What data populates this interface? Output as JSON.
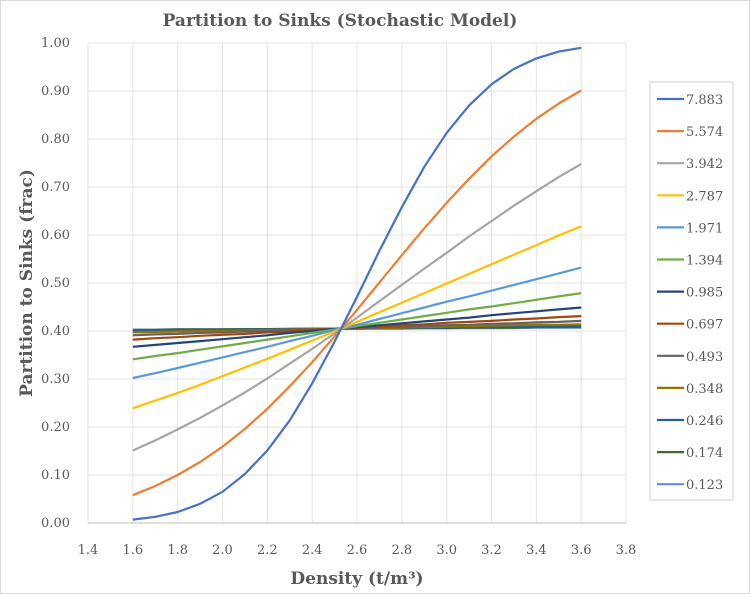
{
  "chart_data": {
    "type": "line",
    "title": "Partition to Sinks (Stochastic Model)",
    "xlabel": "Density (t/m³)",
    "ylabel": "Partition to Sinks (frac)",
    "xlim": [
      1.4,
      3.8
    ],
    "ylim": [
      0,
      1.0
    ],
    "xticks": [
      "1.4",
      "1.6",
      "1.8",
      "2.0",
      "2.2",
      "2.4",
      "2.6",
      "2.8",
      "3.0",
      "3.2",
      "3.4",
      "3.6",
      "3.8"
    ],
    "yticks": [
      "0.00",
      "0.10",
      "0.20",
      "0.30",
      "0.40",
      "0.50",
      "0.60",
      "0.70",
      "0.80",
      "0.90",
      "1.00"
    ],
    "grid": true,
    "legend_position": "right",
    "x": [
      1.6,
      1.7,
      1.8,
      1.9,
      2.0,
      2.1,
      2.2,
      2.3,
      2.4,
      2.5,
      2.6,
      2.7,
      2.8,
      2.9,
      3.0,
      3.1,
      3.2,
      3.3,
      3.4,
      3.5,
      3.6
    ],
    "series": [
      {
        "name": "7.883",
        "color": "#4472C4",
        "values": [
          0.007,
          0.013,
          0.023,
          0.04,
          0.065,
          0.102,
          0.151,
          0.214,
          0.291,
          0.378,
          0.471,
          0.567,
          0.658,
          0.742,
          0.813,
          0.87,
          0.914,
          0.946,
          0.968,
          0.982,
          0.99
        ]
      },
      {
        "name": "5.574",
        "color": "#ED7D31",
        "values": [
          0.058,
          0.077,
          0.1,
          0.127,
          0.159,
          0.196,
          0.238,
          0.285,
          0.335,
          0.389,
          0.444,
          0.501,
          0.558,
          0.614,
          0.667,
          0.717,
          0.764,
          0.805,
          0.842,
          0.874,
          0.901
        ]
      },
      {
        "name": "3.942",
        "color": "#A5A5A5",
        "values": [
          0.151,
          0.172,
          0.195,
          0.219,
          0.245,
          0.272,
          0.301,
          0.332,
          0.363,
          0.395,
          0.428,
          0.462,
          0.496,
          0.53,
          0.563,
          0.597,
          0.629,
          0.661,
          0.691,
          0.721,
          0.748
        ]
      },
      {
        "name": "2.787",
        "color": "#FFC000",
        "values": [
          0.239,
          0.255,
          0.271,
          0.288,
          0.306,
          0.324,
          0.342,
          0.361,
          0.38,
          0.399,
          0.419,
          0.439,
          0.459,
          0.479,
          0.499,
          0.519,
          0.539,
          0.559,
          0.579,
          0.599,
          0.618
        ]
      },
      {
        "name": "1.971",
        "color": "#5B9BD5",
        "values": [
          0.302,
          0.312,
          0.323,
          0.334,
          0.345,
          0.356,
          0.367,
          0.379,
          0.39,
          0.402,
          0.413,
          0.425,
          0.437,
          0.449,
          0.461,
          0.472,
          0.484,
          0.496,
          0.508,
          0.52,
          0.532
        ]
      },
      {
        "name": "1.394",
        "color": "#70AD47",
        "values": [
          0.341,
          0.348,
          0.354,
          0.361,
          0.368,
          0.375,
          0.382,
          0.389,
          0.396,
          0.403,
          0.41,
          0.417,
          0.424,
          0.431,
          0.438,
          0.445,
          0.451,
          0.458,
          0.465,
          0.472,
          0.479
        ]
      },
      {
        "name": "0.985",
        "color": "#264478",
        "values": [
          0.367,
          0.371,
          0.375,
          0.379,
          0.383,
          0.387,
          0.391,
          0.396,
          0.4,
          0.404,
          0.408,
          0.412,
          0.416,
          0.42,
          0.424,
          0.428,
          0.433,
          0.437,
          0.441,
          0.445,
          0.449
        ]
      },
      {
        "name": "0.697",
        "color": "#9E480E",
        "values": [
          0.382,
          0.385,
          0.387,
          0.39,
          0.392,
          0.394,
          0.397,
          0.399,
          0.402,
          0.404,
          0.407,
          0.409,
          0.412,
          0.414,
          0.417,
          0.419,
          0.421,
          0.424,
          0.426,
          0.429,
          0.431
        ]
      },
      {
        "name": "0.493",
        "color": "#636363",
        "values": [
          0.391,
          0.393,
          0.394,
          0.396,
          0.397,
          0.399,
          0.4,
          0.402,
          0.403,
          0.405,
          0.406,
          0.407,
          0.409,
          0.41,
          0.412,
          0.413,
          0.415,
          0.416,
          0.418,
          0.419,
          0.421
        ]
      },
      {
        "name": "0.348",
        "color": "#997300",
        "values": [
          0.397,
          0.398,
          0.399,
          0.4,
          0.4,
          0.401,
          0.402,
          0.403,
          0.404,
          0.405,
          0.406,
          0.406,
          0.407,
          0.408,
          0.409,
          0.41,
          0.411,
          0.412,
          0.413,
          0.413,
          0.414
        ]
      },
      {
        "name": "0.246",
        "color": "#255E91",
        "values": [
          0.4,
          0.401,
          0.401,
          0.402,
          0.402,
          0.403,
          0.403,
          0.404,
          0.404,
          0.405,
          0.405,
          0.406,
          0.406,
          0.407,
          0.407,
          0.408,
          0.408,
          0.409,
          0.409,
          0.41,
          0.41
        ]
      },
      {
        "name": "0.174",
        "color": "#43682B",
        "values": [
          0.402,
          0.402,
          0.403,
          0.403,
          0.403,
          0.404,
          0.404,
          0.404,
          0.405,
          0.405,
          0.405,
          0.406,
          0.406,
          0.406,
          0.406,
          0.407,
          0.407,
          0.407,
          0.408,
          0.408,
          0.408
        ]
      },
      {
        "name": "0.123",
        "color": "#698ED0",
        "values": [
          0.403,
          0.403,
          0.404,
          0.404,
          0.404,
          0.404,
          0.404,
          0.405,
          0.405,
          0.405,
          0.405,
          0.405,
          0.405,
          0.406,
          0.406,
          0.406,
          0.406,
          0.406,
          0.407,
          0.407,
          0.407
        ]
      }
    ]
  }
}
